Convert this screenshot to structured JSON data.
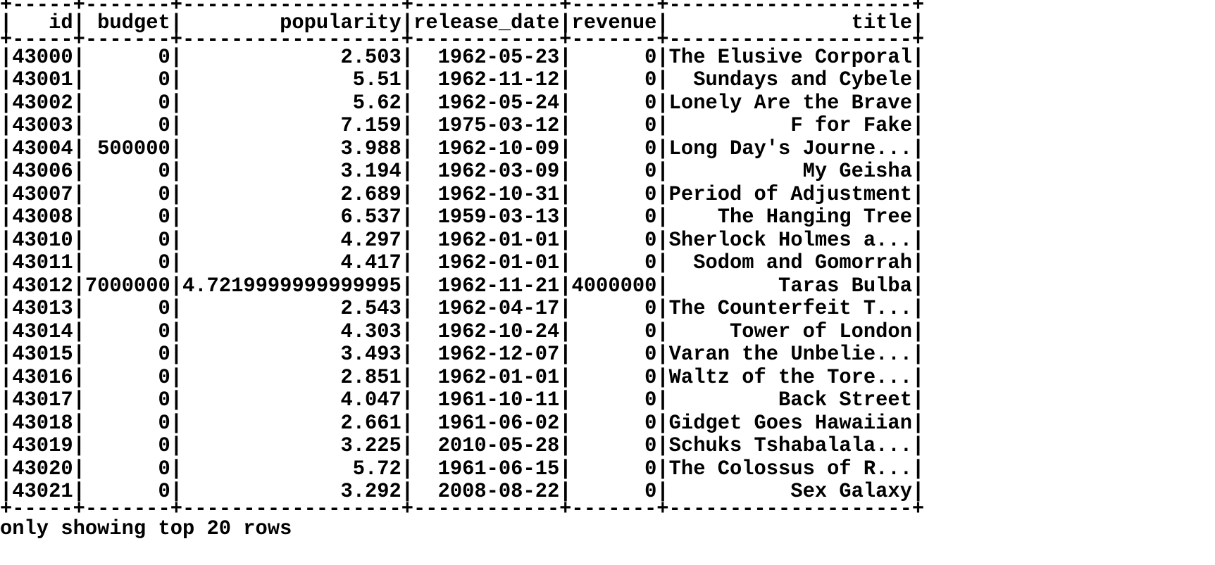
{
  "table": {
    "columns": [
      {
        "key": "id",
        "label": "id",
        "align": "right"
      },
      {
        "key": "budget",
        "label": "budget",
        "align": "right"
      },
      {
        "key": "popularity",
        "label": "popularity",
        "align": "right"
      },
      {
        "key": "release_date",
        "label": "release_date",
        "align": "right"
      },
      {
        "key": "revenue",
        "label": "revenue",
        "align": "right"
      },
      {
        "key": "title",
        "label": "title",
        "align": "right"
      }
    ],
    "rows": [
      {
        "id": "43000",
        "budget": "0",
        "popularity": "2.503",
        "release_date": "1962-05-23",
        "revenue": "0",
        "title": "The Elusive Corporal"
      },
      {
        "id": "43001",
        "budget": "0",
        "popularity": "5.51",
        "release_date": "1962-11-12",
        "revenue": "0",
        "title": "Sundays and Cybele"
      },
      {
        "id": "43002",
        "budget": "0",
        "popularity": "5.62",
        "release_date": "1962-05-24",
        "revenue": "0",
        "title": "Lonely Are the Brave"
      },
      {
        "id": "43003",
        "budget": "0",
        "popularity": "7.159",
        "release_date": "1975-03-12",
        "revenue": "0",
        "title": "F for Fake"
      },
      {
        "id": "43004",
        "budget": "500000",
        "popularity": "3.988",
        "release_date": "1962-10-09",
        "revenue": "0",
        "title": "Long Day's Journe..."
      },
      {
        "id": "43006",
        "budget": "0",
        "popularity": "3.194",
        "release_date": "1962-03-09",
        "revenue": "0",
        "title": "My Geisha"
      },
      {
        "id": "43007",
        "budget": "0",
        "popularity": "2.689",
        "release_date": "1962-10-31",
        "revenue": "0",
        "title": "Period of Adjustment"
      },
      {
        "id": "43008",
        "budget": "0",
        "popularity": "6.537",
        "release_date": "1959-03-13",
        "revenue": "0",
        "title": "The Hanging Tree"
      },
      {
        "id": "43010",
        "budget": "0",
        "popularity": "4.297",
        "release_date": "1962-01-01",
        "revenue": "0",
        "title": "Sherlock Holmes a..."
      },
      {
        "id": "43011",
        "budget": "0",
        "popularity": "4.417",
        "release_date": "1962-01-01",
        "revenue": "0",
        "title": "Sodom and Gomorrah"
      },
      {
        "id": "43012",
        "budget": "7000000",
        "popularity": "4.7219999999999995",
        "release_date": "1962-11-21",
        "revenue": "4000000",
        "title": "Taras Bulba"
      },
      {
        "id": "43013",
        "budget": "0",
        "popularity": "2.543",
        "release_date": "1962-04-17",
        "revenue": "0",
        "title": "The Counterfeit T..."
      },
      {
        "id": "43014",
        "budget": "0",
        "popularity": "4.303",
        "release_date": "1962-10-24",
        "revenue": "0",
        "title": "Tower of London"
      },
      {
        "id": "43015",
        "budget": "0",
        "popularity": "3.493",
        "release_date": "1962-12-07",
        "revenue": "0",
        "title": "Varan the Unbelie..."
      },
      {
        "id": "43016",
        "budget": "0",
        "popularity": "2.851",
        "release_date": "1962-01-01",
        "revenue": "0",
        "title": "Waltz of the Tore..."
      },
      {
        "id": "43017",
        "budget": "0",
        "popularity": "4.047",
        "release_date": "1961-10-11",
        "revenue": "0",
        "title": "Back Street"
      },
      {
        "id": "43018",
        "budget": "0",
        "popularity": "2.661",
        "release_date": "1961-06-02",
        "revenue": "0",
        "title": "Gidget Goes Hawaiian"
      },
      {
        "id": "43019",
        "budget": "0",
        "popularity": "3.225",
        "release_date": "2010-05-28",
        "revenue": "0",
        "title": "Schuks Tshabalala..."
      },
      {
        "id": "43020",
        "budget": "0",
        "popularity": "5.72",
        "release_date": "1961-06-15",
        "revenue": "0",
        "title": "The Colossus of R..."
      },
      {
        "id": "43021",
        "budget": "0",
        "popularity": "3.292",
        "release_date": "2008-08-22",
        "revenue": "0",
        "title": "Sex Galaxy"
      }
    ]
  },
  "footer": "only showing top 20 rows",
  "colors": {
    "text": "#000000",
    "background": "#ffffff"
  }
}
